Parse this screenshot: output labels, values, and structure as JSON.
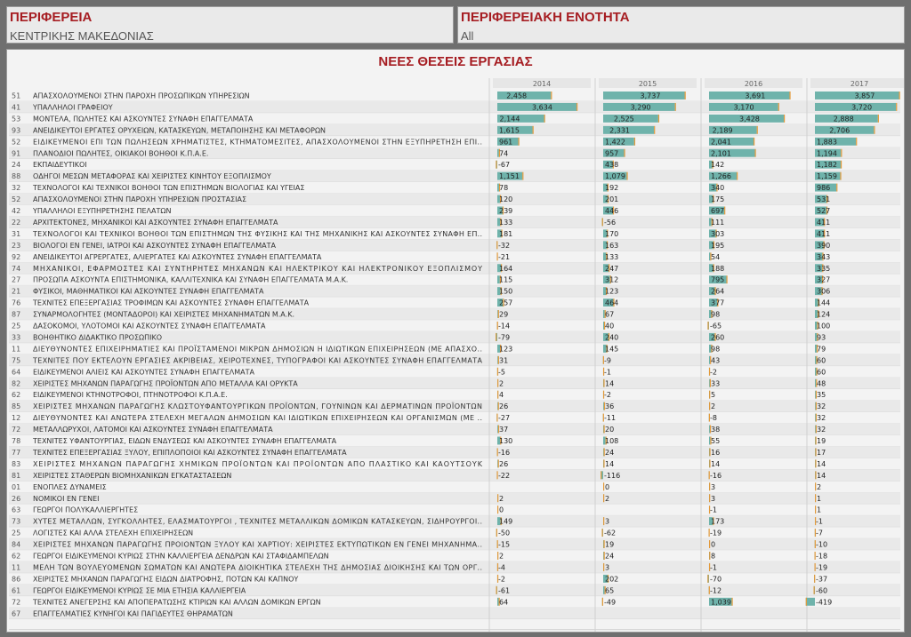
{
  "filters": {
    "region": {
      "title": "ΠΕΡΙΦΕΡΕΙΑ",
      "value": "ΚΕΝΤΡΙΚΗΣ ΜΑΚΕΔΟΝΙΑΣ"
    },
    "unit": {
      "title": "ΠΕΡΙΦΕΡΕΙΑΚΗ ΕΝΟΤΗΤΑ",
      "value": "All"
    }
  },
  "chart_data": {
    "type": "bar",
    "title": "ΝΕΕΣ ΘΕΣΕΙΣ ΕΡΓΑΣΙΑΣ",
    "columns": [
      "2014",
      "2015",
      "2016",
      "2017"
    ],
    "axis_ticks": [
      "0K",
      "2K",
      "4K"
    ],
    "xlim": [
      0,
      4000
    ],
    "bar_color": "#6fb3ab",
    "rows": [
      {
        "code": "51",
        "label": "ΑΠΑΣΧΟΛΟΥΜΕΝΟΙ ΣΤΗΝ ΠΑΡΟΧΗ ΠΡΟΣΩΠΙΚΩΝ ΥΠΗΡΕΣΙΩΝ",
        "values": [
          2458,
          3737,
          3691,
          3857
        ]
      },
      {
        "code": "41",
        "label": "ΥΠΑΛΛΗΛΟΙ ΓΡΑΦΕΙΟΥ",
        "values": [
          3634,
          3290,
          3170,
          3720
        ]
      },
      {
        "code": "53",
        "label": "ΜΟΝΤΕΛΑ, ΠΩΛΗΤΕΣ ΚΑΙ ΑΣΚΟΥΝΤΕΣ ΣΥΝΑΦΗ ΕΠΑΓΓΕΛΜΑΤΑ",
        "values": [
          2144,
          2525,
          3428,
          2888
        ]
      },
      {
        "code": "93",
        "label": "ΑΝΕΙΔΙΚΕΥΤΟΙ ΕΡΓΑΤΕΣ ΟΡΥΧΕΙΩΝ, ΚΑΤΑΣΚΕΥΩΝ, ΜΕΤΑΠΟΙΗΣΗΣ ΚΑΙ ΜΕΤΑΦΟΡΩΝ",
        "values": [
          1615,
          2331,
          2189,
          2706
        ]
      },
      {
        "code": "52",
        "label": "ΕΙΔΙΚΕΥΜΕΝΟΙ ΕΠΙ ΤΩΝ ΠΩΛΗΣΕΩΝ ΧΡΗΜΑΤΙΣΤΕΣ, ΚΤΗΜΑΤΟΜΕΣΙΤΕΣ, ΑΠΑΣΧΟΛΟΥΜΕΝΟΙ ΣΤΗΝ ΕΞΥΠΗΡΕΤΗΣΗ ΕΠΙ..",
        "values": [
          961,
          1422,
          2041,
          1883
        ]
      },
      {
        "code": "91",
        "label": "ΠΛΑΝΟΔΙΟΙ ΠΩΛΗΤΕΣ, ΟΙΚΙΑΚΟΙ ΒΟΗΘΟΙ Κ.Π.Α.Ε.",
        "values": [
          74,
          957,
          2101,
          1194
        ]
      },
      {
        "code": "24",
        "label": "ΕΚΠΑΙΔΕΥΤΙΚΟΙ",
        "values": [
          -67,
          438,
          142,
          1182
        ]
      },
      {
        "code": "88",
        "label": "ΟΔΗΓΟΙ ΜΕΣΩΝ ΜΕΤΑΦΟΡΑΣ ΚΑΙ ΧΕΙΡΙΣΤΕΣ ΚΙΝΗΤΟΥ ΕΞΟΠΛΙΣΜΟΥ",
        "values": [
          1151,
          1079,
          1266,
          1159
        ]
      },
      {
        "code": "32",
        "label": "ΤΕΧΝΟΛΟΓΟΙ ΚΑΙ ΤΕΧΝΙΚΟΙ ΒΟΗΘΟΙ ΤΩΝ ΕΠΙΣΤΗΜΩΝ ΒΙΟΛΟΓΙΑΣ ΚΑΙ ΥΓΕΙΑΣ",
        "values": [
          78,
          192,
          340,
          986
        ]
      },
      {
        "code": "52",
        "label": "ΑΠΑΣΧΟΛΟΥΜΕΝΟΙ ΣΤΗΝ ΠΑΡΟΧΗ ΥΠΗΡΕΣΙΩΝ ΠΡΟΣΤΑΣΙΑΣ",
        "values": [
          120,
          201,
          175,
          531
        ]
      },
      {
        "code": "42",
        "label": "ΥΠΑΛΛΗΛΟΙ ΕΞΥΠΗΡΕΤΗΣΗΣ ΠΕΛΑΤΩΝ",
        "values": [
          239,
          446,
          697,
          527
        ]
      },
      {
        "code": "22",
        "label": "ΑΡΧΙΤΕΚΤΟΝΕΣ, ΜΗΧΑΝΙΚΟΙ ΚΑΙ ΑΣΚΟΥΝΤΕΣ ΣΥΝΑΦΗ ΕΠΑΓΓΕΛΜΑΤΑ",
        "values": [
          133,
          -56,
          111,
          411
        ]
      },
      {
        "code": "31",
        "label": "ΤΕΧΝΟΛΟΓΟΙ ΚΑΙ ΤΕΧΝΙΚΟΙ ΒΟΗΘΟΙ ΤΩΝ ΕΠΙΣΤΗΜΩΝ ΤΗΣ ΦΥΣΙΚΗΣ ΚΑΙ ΤΗΣ ΜΗΧΑΝΙΚΗΣ ΚΑΙ ΑΣΚΟΥΝΤΕΣ ΣΥΝΑΦΗ ΕΠ..",
        "values": [
          181,
          170,
          303,
          411
        ]
      },
      {
        "code": "23",
        "label": "ΒΙΟΛΟΓΟΙ ΕΝ ΓΕΝΕΙ, ΙΑΤΡΟΙ ΚΑΙ ΑΣΚΟΥΝΤΕΣ ΣΥΝΑΦΗ ΕΠΑΓΓΕΛΜΑΤΑ",
        "values": [
          -32,
          163,
          195,
          390
        ]
      },
      {
        "code": "92",
        "label": "ΑΝΕΙΔΙΚΕΥΤΟΙ ΑΓΡΕΡΓΑΤΕΣ, ΑΛΙΕΡΓΑΤΕΣ ΚΑΙ ΑΣΚΟΥΝΤΕΣ ΣΥΝΑΦΗ ΕΠΑΓΓΕΛΜΑΤΑ",
        "values": [
          -21,
          133,
          54,
          343
        ]
      },
      {
        "code": "74",
        "label": "ΜΗΧΑΝΙΚΟΙ, ΕΦΑΡΜΟΣΤΕΣ ΚΑΙ ΣΥΝΤΗΡΗΤΕΣ ΜΗΧΑΝΩΝ ΚΑΙ ΗΛΕΚΤΡΙΚΟΥ ΚΑΙ ΗΛΕΚΤΡΟΝΙΚΟΥ ΕΞΟΠΛΙΣΜΟΥ",
        "values": [
          164,
          247,
          188,
          335
        ]
      },
      {
        "code": "27",
        "label": "ΠΡΟΣΩΠΑ ΑΣΚΟΥΝΤΑ ΕΠΙΣΤΗΜΟΝΙΚΑ, ΚΑΛΛΙΤΕΧΝΙΚΑ ΚΑΙ ΣΥΝΑΦΗ ΕΠΑΓΓΕΛΜΑΤΑ Μ.Α.Κ.",
        "values": [
          115,
          312,
          795,
          327
        ]
      },
      {
        "code": "21",
        "label": "ΦΥΣΙΚΟΙ, ΜΑΘΗΜΑΤΙΚΟΙ ΚΑΙ ΑΣΚΟΥΝΤΕΣ ΣΥΝΑΦΗ ΕΠΑΓΓΕΛΜΑΤΑ",
        "values": [
          150,
          123,
          264,
          306
        ]
      },
      {
        "code": "76",
        "label": "ΤΕΧΝΙΤΕΣ ΕΠΕΞΕΡΓΑΣΙΑΣ ΤΡΟΦΙΜΩΝ ΚΑΙ ΑΣΚΟΥΝΤΕΣ ΣΥΝΑΦΗ ΕΠΑΓΓΕΛΜΑΤΑ",
        "values": [
          257,
          464,
          377,
          144
        ]
      },
      {
        "code": "87",
        "label": "ΣΥΝΑΡΜΟΛΟΓΗΤΕΣ (ΜΟΝΤΑΔΟΡΟΙ) ΚΑΙ ΧΕΙΡΙΣΤΕΣ ΜΗΧΑΝΗΜΑΤΩΝ Μ.Α.Κ.",
        "values": [
          29,
          67,
          98,
          124
        ]
      },
      {
        "code": "25",
        "label": "ΔΑΣΟΚΟΜΟΙ, ΥΛΟΤΟΜΟΙ ΚΑΙ ΑΣΚΟΥΝΤΕΣ ΣΥΝΑΦΗ ΕΠΑΓΓΕΛΜΑΤΑ",
        "values": [
          -14,
          40,
          -65,
          100
        ]
      },
      {
        "code": "33",
        "label": "ΒΟΗΘΗΤΙΚΟ ΔΙΔΑΚΤΙΚΟ ΠΡΟΣΩΠΙΚΟ",
        "values": [
          -79,
          240,
          260,
          93
        ]
      },
      {
        "code": "11",
        "label": "ΔΙΕΥΘΥΝΟΝΤΕΣ ΕΠΙΧΕΙΡΗΜΑΤΙΕΣ ΚΑΙ ΠΡΟΪΣΤΑΜΕΝΟΙ ΜΙΚΡΩΝ ΔΗΜΟΣΙΩΝ Η ΙΔΙΩΤΙΚΩΝ ΕΠΙΧΕΙΡΗΣΕΩΝ (ΜΕ ΑΠΑΣΧΟ..",
        "values": [
          123,
          145,
          98,
          79
        ]
      },
      {
        "code": "75",
        "label": "ΤΕΧΝΙΤΕΣ ΠΟΥ ΕΚΤΕΛΟΥΝ ΕΡΓΑΣΙΕΣ ΑΚΡΙΒΕΙΑΣ, ΧΕΙΡΟΤΕΧΝΕΣ, ΤΥΠΟΓΡΑΦΟΙ ΚΑΙ ΑΣΚΟΥΝΤΕΣ ΣΥΝΑΦΗ ΕΠΑΓΓΕΛΜΑΤΑ",
        "values": [
          31,
          -9,
          43,
          60
        ]
      },
      {
        "code": "64",
        "label": "ΕΙΔΙΚΕΥΜΕΝΟΙ ΑΛΙΕΙΣ ΚΑΙ ΑΣΚΟΥΝΤΕΣ ΣΥΝΑΦΗ ΕΠΑΓΓΕΛΜΑΤΑ",
        "values": [
          -5,
          -1,
          -2,
          60
        ]
      },
      {
        "code": "82",
        "label": "ΧΕΙΡΙΣΤΕΣ ΜΗΧΑΝΩΝ ΠΑΡΑΓΩΓΗΣ ΠΡΟΪΟΝΤΩΝ ΑΠΟ ΜΕΤΑΛΛΑ ΚΑΙ ΟΡΥΚΤΑ",
        "values": [
          2,
          14,
          33,
          48
        ]
      },
      {
        "code": "62",
        "label": "ΕΙΔΙΚΕΥΜΕΝΟΙ ΚΤΗΝΟΤΡΟΦΟΙ, ΠΤΗΝΟΤΡΟΦΟΙ Κ.Π.Α.Ε.",
        "values": [
          4,
          -2,
          5,
          35
        ]
      },
      {
        "code": "85",
        "label": "ΧΕΙΡΙΣΤΕΣ ΜΗΧΑΝΩΝ ΠΑΡΑΓΩΓΗΣ ΚΛΩΣΤΟΥΦΑΝΤΟΥΡΓΙΚΩΝ ΠΡΟΪΟΝΤΩΝ, ΓΟΥΝΙΝΩΝ ΚΑΙ ΔΕΡΜΑΤΙΝΩΝ ΠΡΟΪΟΝΤΩΝ",
        "values": [
          26,
          36,
          2,
          32
        ]
      },
      {
        "code": "12",
        "label": "ΔΙΕΥΘΥΝΟΝΤΕΣ ΚΑΙ ΑΝΩΤΕΡΑ ΣΤΕΛΕΧΗ ΜΕΓΑΛΩΝ ΔΗΜΟΣΙΩΝ ΚΑΙ ΙΔΙΩΤΙΚΩΝ ΕΠΙΧΕΙΡΗΣΕΩΝ ΚΑΙ ΟΡΓΑΝΙΣΜΩΝ (ΜΕ ..",
        "values": [
          -27,
          -11,
          -8,
          32
        ]
      },
      {
        "code": "72",
        "label": "ΜΕΤΑΛΛΩΡΥΧΟΙ, ΛΑΤΟΜΟΙ ΚΑΙ ΑΣΚΟΥΝΤΕΣ ΣΥΝΑΦΗ ΕΠΑΓΓΕΛΜΑΤΑ",
        "values": [
          37,
          20,
          38,
          32
        ]
      },
      {
        "code": "78",
        "label": "ΤΕΧΝΙΤΕΣ ΥΦΑΝΤΟΥΡΓΙΑΣ, ΕΙΔΩΝ ΕΝΔΥΣΕΩΣ ΚΑΙ ΑΣΚΟΥΝΤΕΣ ΣΥΝΑΦΗ ΕΠΑΓΓΕΛΜΑΤΑ",
        "values": [
          130,
          108,
          55,
          19
        ]
      },
      {
        "code": "77",
        "label": "ΤΕΧΝΙΤΕΣ ΕΠΕΞΕΡΓΑΣΙΑΣ ΞΥΛΟΥ, ΕΠΙΠΛΟΠΟΙΟΙ ΚΑΙ ΑΣΚΟΥΝΤΕΣ ΣΥΝΑΦΗ ΕΠΑΓΓΕΛΜΑΤΑ",
        "values": [
          -16,
          24,
          16,
          17
        ]
      },
      {
        "code": "83",
        "label": "ΧΕΙΡΙΣΤΕΣ ΜΗΧΑΝΩΝ ΠΑΡΑΓΩΓΗΣ ΧΗΜΙΚΩΝ ΠΡΟΪΟΝΤΩΝ ΚΑΙ ΠΡΟΪΟΝΤΩΝ ΑΠΟ ΠΛΑΣΤΙΚΟ ΚΑΙ ΚΑΟΥΤΣΟΥΚ",
        "values": [
          26,
          14,
          14,
          14
        ]
      },
      {
        "code": "81",
        "label": "ΧΕΙΡΙΣΤΕΣ ΣΤΑΘΕΡΩΝ ΒΙΟΜΗΧΑΝΙΚΩΝ ΕΓΚΑΤΑΣΤΑΣΕΩΝ",
        "values": [
          -22,
          -116,
          -16,
          14
        ]
      },
      {
        "code": "01",
        "label": "ΕΝΟΠΛΕΣ ΔΥΝΑΜΕΙΣ",
        "values": [
          null,
          0,
          3,
          2
        ]
      },
      {
        "code": "26",
        "label": "ΝΟΜΙΚΟΙ ΕΝ ΓΕΝΕΙ",
        "values": [
          2,
          2,
          3,
          1
        ]
      },
      {
        "code": "63",
        "label": "ΓΕΩΡΓΟΙ ΠΟΛΥΚΑΛΛΙΕΡΓΗΤΕΣ",
        "values": [
          0,
          null,
          -1,
          1
        ]
      },
      {
        "code": "73",
        "label": "ΧΥΤΕΣ ΜΕΤΑΛΛΩΝ, ΣΥΓΚΟΛΛΗΤΕΣ, ΕΛΑΣΜΑΤΟΥΡΓΟΙ , ΤΕΧΝΙΤΕΣ ΜΕΤΑΛΛΙΚΩΝ ΔΟΜΙΚΩΝ ΚΑΤΑΣΚΕΥΩΝ, ΣΙΔΗΡΟΥΡΓΟΙ..",
        "values": [
          149,
          3,
          173,
          -1
        ]
      },
      {
        "code": "25",
        "label": "ΛΟΓΙΣΤΕΣ ΚΑΙ ΑΛΛΑ ΣΤΕΛΕΧΗ ΕΠΙΧΕΙΡΗΣΕΩΝ",
        "values": [
          -50,
          -62,
          -19,
          -7
        ]
      },
      {
        "code": "84",
        "label": "ΧΕΙΡΙΣΤΕΣ ΜΗΧΑΝΩΝ ΠΑΡΑΓΩΓΗΣ ΠΡΟΙΟΝΤΩΝ ΞΥΛΟΥ ΚΑΙ ΧΑΡΤΙΟΥ: ΧΕΙΡΙΣΤΕΣ ΕΚΤΥΠΩΤΙΚΩΝ ΕΝ ΓΕΝΕΙ ΜΗΧΑΝΗΜΑ..",
        "values": [
          -15,
          19,
          0,
          -10
        ]
      },
      {
        "code": "62",
        "label": "ΓΕΩΡΓΟΙ ΕΙΔΙΚΕΥΜΕΝΟΙ ΚΥΡΙΩΣ ΣΤΗΝ ΚΑΛΛΙΕΡΓΕΙΑ ΔΕΝΔΡΩΝ ΚΑΙ ΣΤΑΦΙΔΑΜΠΕΛΩΝ",
        "values": [
          2,
          24,
          8,
          -18
        ]
      },
      {
        "code": "11",
        "label": "ΜΕΛΗ ΤΩΝ ΒΟΥΛΕΥΟΜΕΝΩΝ ΣΩΜΑΤΩΝ ΚΑΙ ΑΝΩΤΕΡΑ ΔΙΟΙΚΗΤΙΚΑ ΣΤΕΛΕΧΗ ΤΗΣ ΔΗΜΟΣΙΑΣ ΔΙΟΙΚΗΣΗΣ ΚΑΙ ΤΩΝ ΟΡΓ..",
        "values": [
          -4,
          3,
          -1,
          -19
        ]
      },
      {
        "code": "86",
        "label": "ΧΕΙΡΙΣΤΕΣ ΜΗΧΑΝΩΝ ΠΑΡΑΓΩΓΗΣ ΕΙΔΩΝ ΔΙΑΤΡΟΦΗΣ, ΠΟΤΩΝ ΚΑΙ ΚΑΠΝΟΥ",
        "values": [
          -2,
          202,
          -70,
          -37
        ]
      },
      {
        "code": "61",
        "label": "ΓΕΩΡΓΟΙ ΕΙΔΙΚΕΥΜΕΝΟΙ ΚΥΡΙΩΣ ΣΕ ΜΙΑ ΕΤΗΣΙΑ ΚΑΛΛΙΕΡΓΕΙΑ",
        "values": [
          -61,
          65,
          -12,
          -60
        ]
      },
      {
        "code": "72",
        "label": "ΤΕΧΝΙΤΕΣ ΑΝΕΓΕΡΣΗΣ ΚΑΙ ΑΠΟΠΕΡΑΤΩΣΗΣ ΚΤΙΡΙΩΝ ΚΑΙ ΑΛΛΩΝ ΔΟΜΙΚΩΝ ΕΡΓΩΝ",
        "values": [
          64,
          -49,
          1039,
          -419
        ]
      },
      {
        "code": "67",
        "label": "ΕΠΑΓΓΕΛΜΑΤΙΕΣ ΚΥΝΗΓΟΙ ΚΑΙ ΠΑΓΙΔΕΥΤΕΣ ΘΗΡΑΜΑΤΩΝ",
        "values": [
          null,
          null,
          null,
          null
        ]
      }
    ]
  }
}
